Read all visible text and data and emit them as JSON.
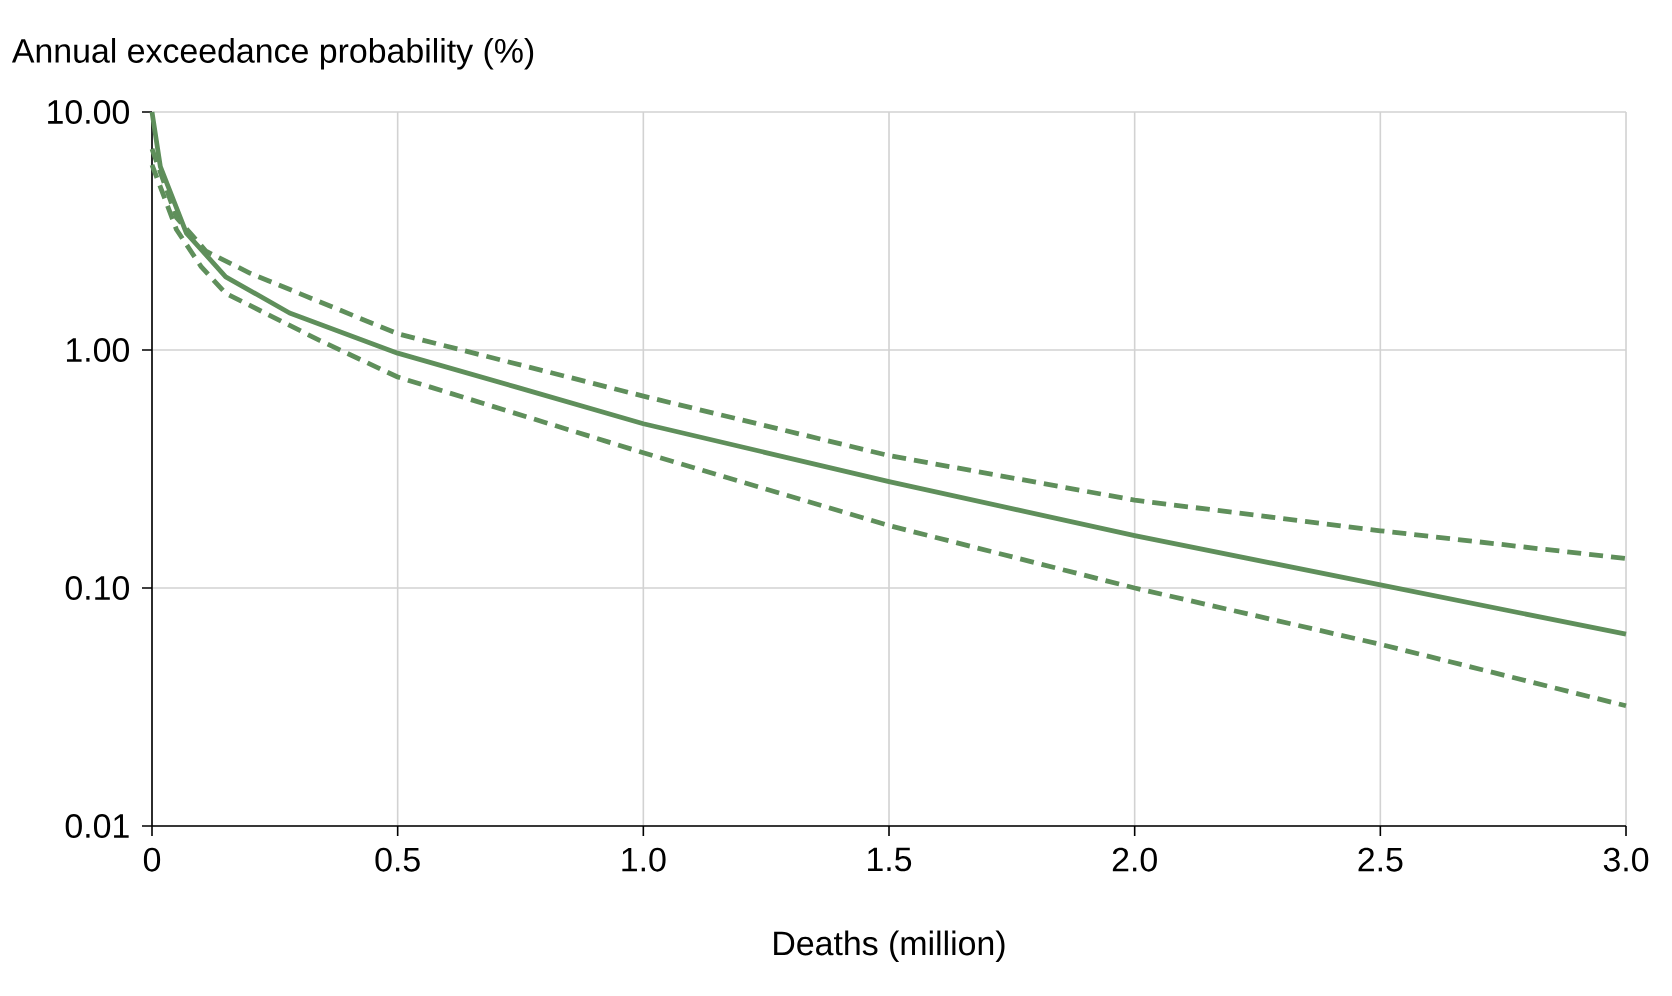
{
  "chart_data": {
    "type": "line",
    "xlabel": "Deaths (million)",
    "ylabel": "Annual exceedance probability (%)",
    "log": "y",
    "grid": true,
    "xlim": [
      0,
      3.0
    ],
    "xticks": [
      0,
      0.5,
      {
        "value": 1.0,
        "label": "1.0"
      },
      1.5,
      {
        "value": 2.0,
        "label": "2.0"
      },
      2.5,
      {
        "value": 3.0,
        "label": "3.0"
      }
    ],
    "ylim": [
      0.01,
      10
    ],
    "yticks": [
      {
        "value": 0.01,
        "label": "0.01"
      },
      {
        "value": 0.1,
        "label": "0.10"
      },
      {
        "value": 1,
        "label": "1.00"
      },
      {
        "value": 10,
        "label": "10.00"
      }
    ],
    "series": [
      {
        "color": "#5f8f5b",
        "line_style": "solid",
        "x": [
          0,
          0.017,
          0.07,
          0.15,
          0.28,
          0.5,
          0.74,
          1.0,
          1.5,
          2.0,
          2.5,
          3.0
        ],
        "values": [
          10,
          5.9,
          3.1,
          2.03,
          1.43,
          0.97,
          0.7,
          0.49,
          0.28,
          0.166,
          0.103,
          0.064
        ]
      },
      {
        "color": "#5f8f5b",
        "line_style": "dashed",
        "x": [
          0,
          0.05,
          0.11,
          0.2,
          0.5,
          1.0,
          1.5,
          2.0,
          2.5,
          3.0
        ],
        "values": [
          7.0,
          3.6,
          2.6,
          2.1,
          1.17,
          0.64,
          0.36,
          0.234,
          0.174,
          0.133
        ]
      },
      {
        "color": "#5f8f5b",
        "line_style": "dashed",
        "x": [
          0,
          0.05,
          0.1,
          0.15,
          0.34,
          0.5,
          1.0,
          1.5,
          2.0,
          2.5,
          3.0
        ],
        "values": [
          6.0,
          3.2,
          2.24,
          1.73,
          1.1,
          0.77,
          0.37,
          0.183,
          0.1,
          0.058,
          0.032
        ]
      }
    ]
  }
}
